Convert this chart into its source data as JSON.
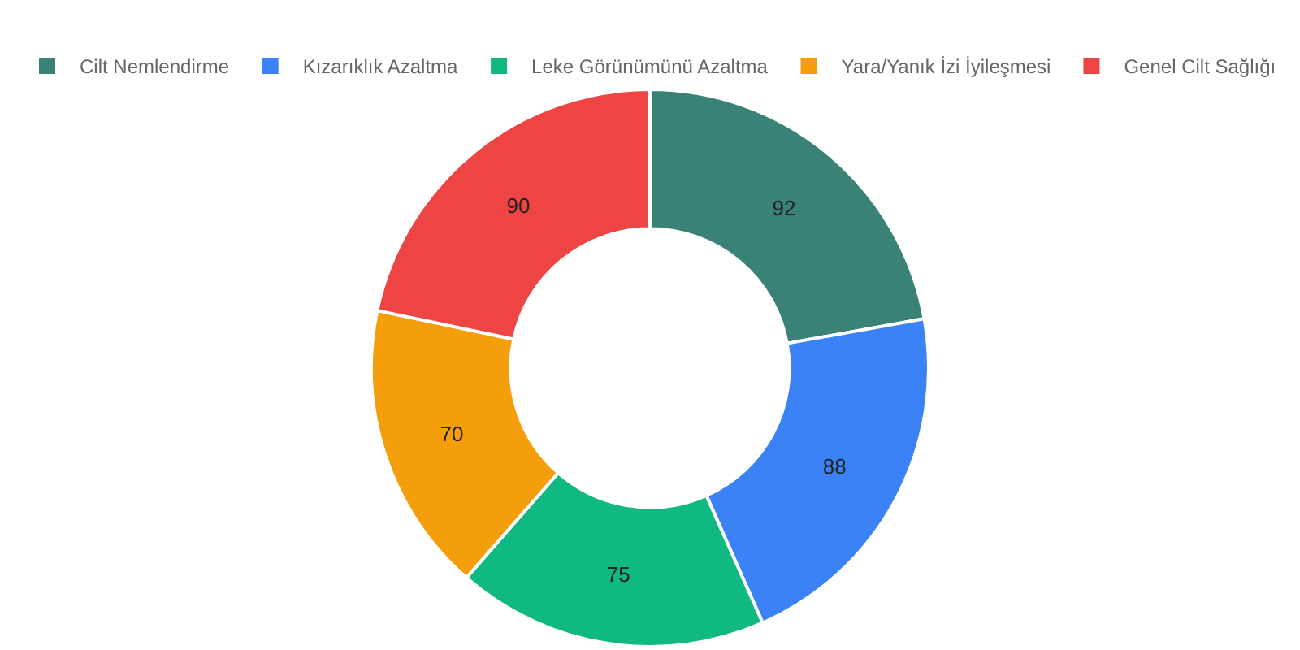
{
  "chart_data": {
    "type": "donut",
    "categories": [
      "Cilt Nemlendirme",
      "Kızarıklık Azaltma",
      "Leke Görünümünü Azaltma",
      "Yara/Yanık İzi İyileşmesi",
      "Genel Cilt Sağlığı"
    ],
    "values": [
      92,
      88,
      75,
      70,
      90
    ],
    "colors": [
      "#3b8276",
      "#3b82f6",
      "#10b981",
      "#f59e0b",
      "#ef4444"
    ],
    "data_labels": true,
    "legend": "top"
  }
}
